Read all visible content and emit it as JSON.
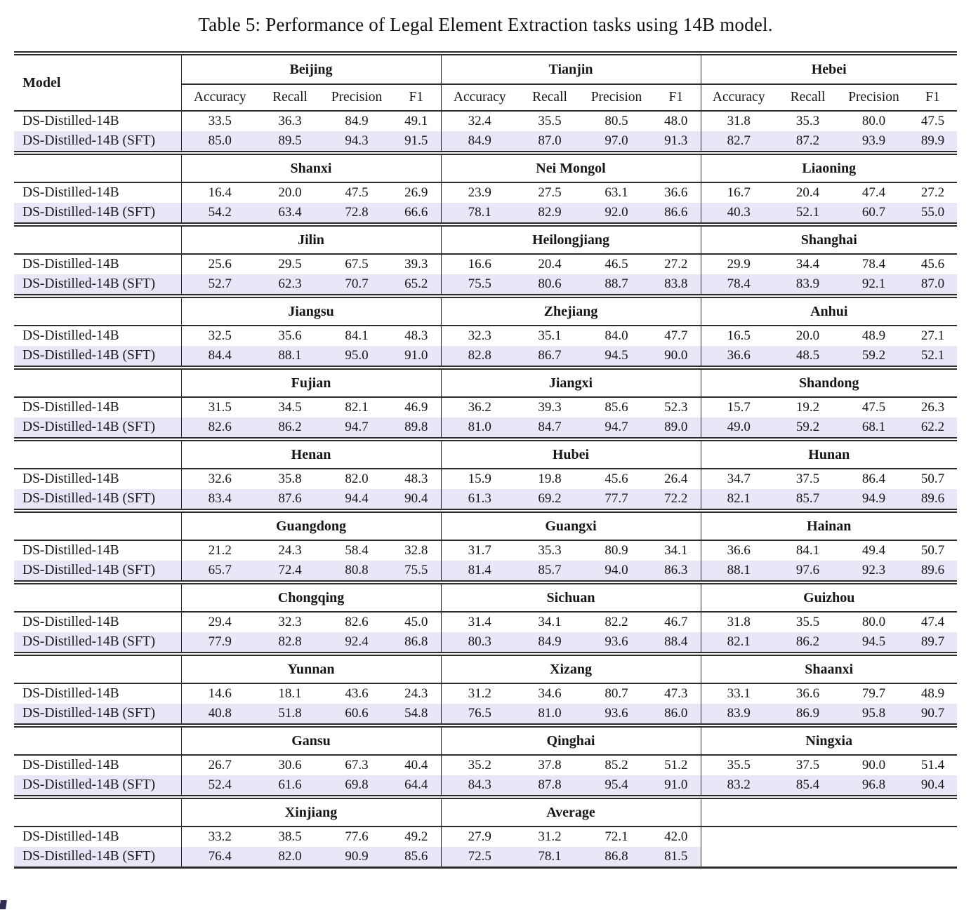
{
  "page": {
    "title": "Table 5: Performance of Legal Element Extraction tasks using 14B model."
  },
  "table": {
    "model_header": "Model",
    "metric_headers": [
      "Accuracy",
      "Recall",
      "Precision",
      "F1"
    ],
    "highlight_color": "#e7e7f8",
    "row_labels": [
      "DS-Distilled-14B",
      "DS-Distilled-14B (SFT)"
    ],
    "blocks": [
      {
        "provinces": [
          "Beijing",
          "Tianjin",
          "Hebei"
        ],
        "rows": [
          {
            "model": "DS-Distilled-14B",
            "highlight": false,
            "values": [
              "33.5",
              "36.3",
              "84.9",
              "49.1",
              "32.4",
              "35.5",
              "80.5",
              "48.0",
              "31.8",
              "35.3",
              "80.0",
              "47.5"
            ]
          },
          {
            "model": "DS-Distilled-14B (SFT)",
            "highlight": true,
            "values": [
              "85.0",
              "89.5",
              "94.3",
              "91.5",
              "84.9",
              "87.0",
              "97.0",
              "91.3",
              "82.7",
              "87.2",
              "93.9",
              "89.9"
            ]
          }
        ]
      },
      {
        "provinces": [
          "Shanxi",
          "Nei Mongol",
          "Liaoning"
        ],
        "rows": [
          {
            "model": "DS-Distilled-14B",
            "highlight": false,
            "values": [
              "16.4",
              "20.0",
              "47.5",
              "26.9",
              "23.9",
              "27.5",
              "63.1",
              "36.6",
              "16.7",
              "20.4",
              "47.4",
              "27.2"
            ]
          },
          {
            "model": "DS-Distilled-14B (SFT)",
            "highlight": true,
            "values": [
              "54.2",
              "63.4",
              "72.8",
              "66.6",
              "78.1",
              "82.9",
              "92.0",
              "86.6",
              "40.3",
              "52.1",
              "60.7",
              "55.0"
            ]
          }
        ]
      },
      {
        "provinces": [
          "Jilin",
          "Heilongjiang",
          "Shanghai"
        ],
        "rows": [
          {
            "model": "DS-Distilled-14B",
            "highlight": false,
            "values": [
              "25.6",
              "29.5",
              "67.5",
              "39.3",
              "16.6",
              "20.4",
              "46.5",
              "27.2",
              "29.9",
              "34.4",
              "78.4",
              "45.6"
            ]
          },
          {
            "model": "DS-Distilled-14B (SFT)",
            "highlight": true,
            "values": [
              "52.7",
              "62.3",
              "70.7",
              "65.2",
              "75.5",
              "80.6",
              "88.7",
              "83.8",
              "78.4",
              "83.9",
              "92.1",
              "87.0"
            ]
          }
        ]
      },
      {
        "provinces": [
          "Jiangsu",
          "Zhejiang",
          "Anhui"
        ],
        "rows": [
          {
            "model": "DS-Distilled-14B",
            "highlight": false,
            "values": [
              "32.5",
              "35.6",
              "84.1",
              "48.3",
              "32.3",
              "35.1",
              "84.0",
              "47.7",
              "16.5",
              "20.0",
              "48.9",
              "27.1"
            ]
          },
          {
            "model": "DS-Distilled-14B (SFT)",
            "highlight": true,
            "values": [
              "84.4",
              "88.1",
              "95.0",
              "91.0",
              "82.8",
              "86.7",
              "94.5",
              "90.0",
              "36.6",
              "48.5",
              "59.2",
              "52.1"
            ]
          }
        ]
      },
      {
        "provinces": [
          "Fujian",
          "Jiangxi",
          "Shandong"
        ],
        "rows": [
          {
            "model": "DS-Distilled-14B",
            "highlight": false,
            "values": [
              "31.5",
              "34.5",
              "82.1",
              "46.9",
              "36.2",
              "39.3",
              "85.6",
              "52.3",
              "15.7",
              "19.2",
              "47.5",
              "26.3"
            ]
          },
          {
            "model": "DS-Distilled-14B (SFT)",
            "highlight": true,
            "values": [
              "82.6",
              "86.2",
              "94.7",
              "89.8",
              "81.0",
              "84.7",
              "94.7",
              "89.0",
              "49.0",
              "59.2",
              "68.1",
              "62.2"
            ]
          }
        ]
      },
      {
        "provinces": [
          "Henan",
          "Hubei",
          "Hunan"
        ],
        "rows": [
          {
            "model": "DS-Distilled-14B",
            "highlight": false,
            "values": [
              "32.6",
              "35.8",
              "82.0",
              "48.3",
              "15.9",
              "19.8",
              "45.6",
              "26.4",
              "34.7",
              "37.5",
              "86.4",
              "50.7"
            ]
          },
          {
            "model": "DS-Distilled-14B (SFT)",
            "highlight": true,
            "values": [
              "83.4",
              "87.6",
              "94.4",
              "90.4",
              "61.3",
              "69.2",
              "77.7",
              "72.2",
              "82.1",
              "85.7",
              "94.9",
              "89.6"
            ]
          }
        ]
      },
      {
        "provinces": [
          "Guangdong",
          "Guangxi",
          "Hainan"
        ],
        "rows": [
          {
            "model": "DS-Distilled-14B",
            "highlight": false,
            "values": [
              "21.2",
              "24.3",
              "58.4",
              "32.8",
              "31.7",
              "35.3",
              "80.9",
              "34.1",
              "36.6",
              "84.1",
              "49.4",
              "50.7"
            ]
          },
          {
            "model": "DS-Distilled-14B (SFT)",
            "highlight": true,
            "values": [
              "65.7",
              "72.4",
              "80.8",
              "75.5",
              "81.4",
              "85.7",
              "94.0",
              "86.3",
              "88.1",
              "97.6",
              "92.3",
              "89.6"
            ]
          }
        ]
      },
      {
        "provinces": [
          "Chongqing",
          "Sichuan",
          "Guizhou"
        ],
        "rows": [
          {
            "model": "DS-Distilled-14B",
            "highlight": false,
            "values": [
              "29.4",
              "32.3",
              "82.6",
              "45.0",
              "31.4",
              "34.1",
              "82.2",
              "46.7",
              "31.8",
              "35.5",
              "80.0",
              "47.4"
            ]
          },
          {
            "model": "DS-Distilled-14B (SFT)",
            "highlight": true,
            "values": [
              "77.9",
              "82.8",
              "92.4",
              "86.8",
              "80.3",
              "84.9",
              "93.6",
              "88.4",
              "82.1",
              "86.2",
              "94.5",
              "89.7"
            ]
          }
        ]
      },
      {
        "provinces": [
          "Yunnan",
          "Xizang",
          "Shaanxi"
        ],
        "rows": [
          {
            "model": "DS-Distilled-14B",
            "highlight": false,
            "values": [
              "14.6",
              "18.1",
              "43.6",
              "24.3",
              "31.2",
              "34.6",
              "80.7",
              "47.3",
              "33.1",
              "36.6",
              "79.7",
              "48.9"
            ]
          },
          {
            "model": "DS-Distilled-14B (SFT)",
            "highlight": true,
            "values": [
              "40.8",
              "51.8",
              "60.6",
              "54.8",
              "76.5",
              "81.0",
              "93.6",
              "86.0",
              "83.9",
              "86.9",
              "95.8",
              "90.7"
            ]
          }
        ]
      },
      {
        "provinces": [
          "Gansu",
          "Qinghai",
          "Ningxia"
        ],
        "rows": [
          {
            "model": "DS-Distilled-14B",
            "highlight": false,
            "values": [
              "26.7",
              "30.6",
              "67.3",
              "40.4",
              "35.2",
              "37.8",
              "85.2",
              "51.2",
              "35.5",
              "37.5",
              "90.0",
              "51.4"
            ]
          },
          {
            "model": "DS-Distilled-14B (SFT)",
            "highlight": true,
            "values": [
              "52.4",
              "61.6",
              "69.8",
              "64.4",
              "84.3",
              "87.8",
              "95.4",
              "91.0",
              "83.2",
              "85.4",
              "96.8",
              "90.4"
            ]
          }
        ]
      },
      {
        "provinces": [
          "Xinjiang",
          "Average",
          ""
        ],
        "rows": [
          {
            "model": "DS-Distilled-14B",
            "highlight": false,
            "values": [
              "33.2",
              "38.5",
              "77.6",
              "49.2",
              "27.9",
              "31.2",
              "72.1",
              "42.0",
              "",
              "",
              "",
              ""
            ]
          },
          {
            "model": "DS-Distilled-14B (SFT)",
            "highlight": true,
            "highlight_cols": 8,
            "values": [
              "76.4",
              "82.0",
              "90.9",
              "85.6",
              "72.5",
              "78.1",
              "86.8",
              "81.5",
              "",
              "",
              "",
              ""
            ]
          }
        ]
      }
    ]
  }
}
